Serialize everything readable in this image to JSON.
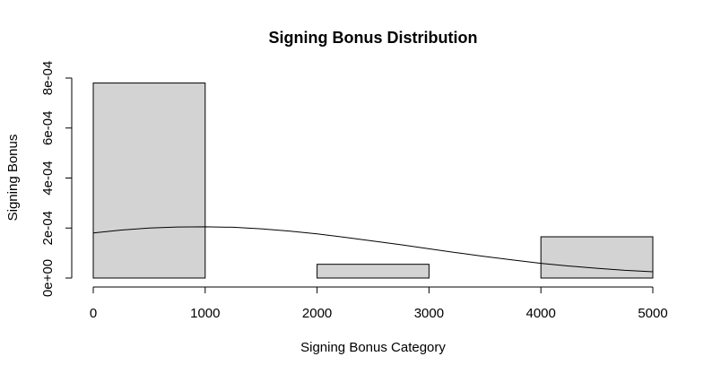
{
  "chart_data": {
    "type": "bar",
    "title": "Signing Bonus Distribution",
    "xlabel": "Signing Bonus Category",
    "ylabel": "Signing Bonus",
    "bins": [
      {
        "x0": 0,
        "x1": 1000,
        "density": 0.00078
      },
      {
        "x0": 1000,
        "x1": 2000,
        "density": 0
      },
      {
        "x0": 2000,
        "x1": 3000,
        "density": 5.5e-05
      },
      {
        "x0": 3000,
        "x1": 4000,
        "density": 0
      },
      {
        "x0": 4000,
        "x1": 5000,
        "density": 0.000165
      }
    ],
    "density_curve": {
      "name": "",
      "x": [
        0,
        250,
        500,
        750,
        1000,
        1250,
        1500,
        1750,
        2000,
        2250,
        2500,
        2750,
        3000,
        3250,
        3500,
        3750,
        4000,
        4250,
        4500,
        4750,
        5000
      ],
      "y": [
        0.00018,
        0.000192,
        0.0002,
        0.000204,
        0.000205,
        0.000203,
        0.000197,
        0.000188,
        0.000177,
        0.000163,
        0.000148,
        0.000133,
        0.000117,
        0.000101,
        8.6e-05,
        7.2e-05,
        5.9e-05,
        4.8e-05,
        3.9e-05,
        3.1e-05,
        2.5e-05
      ]
    },
    "xlim": [
      0,
      5000
    ],
    "ylim": [
      0,
      0.0008
    ],
    "x_ticks": [
      0,
      1000,
      2000,
      3000,
      4000,
      5000
    ],
    "x_tick_labels": [
      "0",
      "1000",
      "2000",
      "3000",
      "4000",
      "5000"
    ],
    "y_ticks": [
      0,
      0.0002,
      0.0004,
      0.0006,
      0.0008
    ],
    "y_tick_labels": [
      "0e+00",
      "2e-04",
      "4e-04",
      "6e-04",
      "8e-04"
    ],
    "grid": false,
    "colors": {
      "bar_fill": "#d3d3d3",
      "bar_stroke": "#000000",
      "line": "#000000"
    }
  }
}
